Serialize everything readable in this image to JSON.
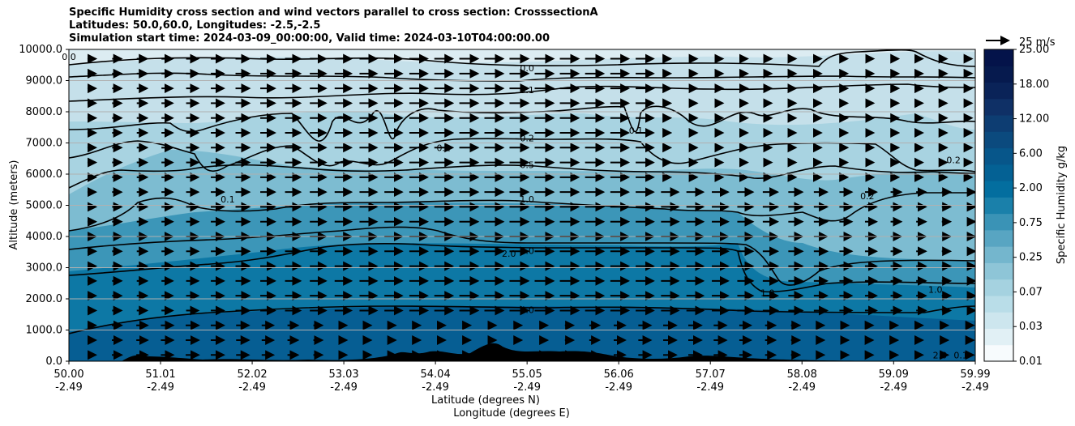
{
  "chart_data": {
    "type": "contour",
    "title": [
      "Specific Humidity cross section and wind vectors parallel to cross section: CrosssectionA",
      "Latitudes: 50.0,60.0, Longitudes: -2.5,-2.5",
      "Simulation start time: 2024-03-09_00:00:00, Valid time: 2024-03-10T04:00:00.00"
    ],
    "ylabel": "Altitude (meters)",
    "xlabel_lat": "Latitude (degrees N)",
    "xlabel_lon": "Longitude (degrees E)",
    "ylim": [
      0,
      10000
    ],
    "xlim": [
      50.0,
      59.99
    ],
    "yticks": [
      "0.0",
      "1000.0",
      "2000.0",
      "3000.0",
      "4000.0",
      "5000.0",
      "6000.0",
      "7000.0",
      "8000.0",
      "9000.0",
      "10000.0"
    ],
    "ytick_values": [
      0,
      1000,
      2000,
      3000,
      4000,
      5000,
      6000,
      7000,
      8000,
      9000,
      10000
    ],
    "xticks": [
      {
        "lat": "50.00",
        "lon": "-2.49",
        "value": 50.0
      },
      {
        "lat": "51.01",
        "lon": "-2.49",
        "value": 51.01
      },
      {
        "lat": "52.02",
        "lon": "-2.49",
        "value": 52.02
      },
      {
        "lat": "53.03",
        "lon": "-2.49",
        "value": 53.03
      },
      {
        "lat": "54.04",
        "lon": "-2.49",
        "value": 54.04
      },
      {
        "lat": "55.05",
        "lon": "-2.49",
        "value": 55.05
      },
      {
        "lat": "56.06",
        "lon": "-2.49",
        "value": 56.06
      },
      {
        "lat": "57.07",
        "lon": "-2.49",
        "value": 57.07
      },
      {
        "lat": "58.08",
        "lon": "-2.49",
        "value": 58.08
      },
      {
        "lat": "59.09",
        "lon": "-2.49",
        "value": 59.09
      },
      {
        "lat": "59.99",
        "lon": "-2.49",
        "value": 59.99
      }
    ],
    "colorbar": {
      "label": "Specific Humidity g/kg",
      "ticks": [
        "0.01",
        "0.03",
        "0.07",
        "0.25",
        "0.75",
        "2.00",
        "6.00",
        "12.00",
        "18.00",
        "25.00"
      ],
      "colors": [
        "#f7fbfd",
        "#e1f0f5",
        "#cde6ee",
        "#b9dde8",
        "#a5d2e0",
        "#8ec5d7",
        "#74b6cd",
        "#58a5c2",
        "#3a93b6",
        "#1a80aa",
        "#036e9f",
        "#046194",
        "#07568a",
        "#0b4a7e",
        "#0d3d72",
        "#0f3066",
        "#0a2358",
        "#061a4e",
        "#04134a"
      ]
    },
    "quiver_key": {
      "label": "25 m/s",
      "value": 25
    },
    "contour_labels": [
      {
        "text": "0.0",
        "x": 50.0,
        "y": 9760
      },
      {
        "text": "0.0",
        "x": 55.05,
        "y": 9400
      },
      {
        "text": "0.1",
        "x": 55.05,
        "y": 8700
      },
      {
        "text": "0.1",
        "x": 56.25,
        "y": 7400
      },
      {
        "text": "0.1",
        "x": 51.75,
        "y": 5200
      },
      {
        "text": "0.1",
        "x": 54.13,
        "y": 6850
      },
      {
        "text": "0.2",
        "x": 55.05,
        "y": 7150
      },
      {
        "text": "0.2",
        "x": 59.75,
        "y": 6450
      },
      {
        "text": "0.2",
        "x": 58.8,
        "y": 5300
      },
      {
        "text": "0.5",
        "x": 55.05,
        "y": 6300
      },
      {
        "text": "1.0",
        "x": 55.05,
        "y": 5200
      },
      {
        "text": "1.0",
        "x": 57.7,
        "y": 2200
      },
      {
        "text": "1.0",
        "x": 59.55,
        "y": 2300
      },
      {
        "text": "2.0",
        "x": 54.85,
        "y": 3450
      },
      {
        "text": "2.0",
        "x": 55.05,
        "y": 3550
      },
      {
        "text": "4.0",
        "x": 55.05,
        "y": 1650
      },
      {
        "text": "2.0",
        "x": 59.6,
        "y": 200
      },
      {
        "text": "0.1",
        "x": 59.83,
        "y": 200
      }
    ]
  }
}
